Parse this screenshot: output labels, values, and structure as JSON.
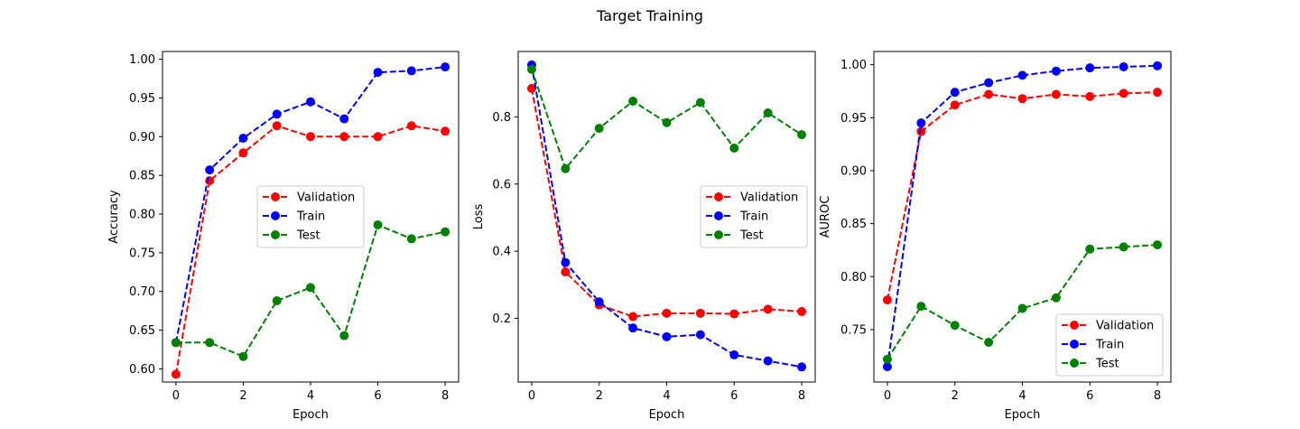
{
  "figure": {
    "title": "Target Training"
  },
  "chart_data": [
    {
      "type": "line",
      "xlabel": "Epoch",
      "ylabel": "Accuracy",
      "x": [
        0,
        1,
        2,
        3,
        4,
        5,
        6,
        7,
        8
      ],
      "xlim": [
        -0.4,
        8.4
      ],
      "ylim": [
        0.583,
        1.01
      ],
      "xticks": [
        0,
        2,
        4,
        6,
        8
      ],
      "yticks": [
        0.6,
        0.65,
        0.7,
        0.75,
        0.8,
        0.85,
        0.9,
        0.95,
        1.0
      ],
      "ytick_decimals": 2,
      "legend_position": "center-right",
      "series": [
        {
          "name": "Validation",
          "color": "#ff0000",
          "values": [
            0.593,
            0.843,
            0.879,
            0.914,
            0.9,
            0.9,
            0.9,
            0.914,
            0.907
          ]
        },
        {
          "name": "Train",
          "color": "#0000ff",
          "values": [
            0.634,
            0.857,
            0.898,
            0.929,
            0.945,
            0.923,
            0.983,
            0.985,
            0.99
          ]
        },
        {
          "name": "Test",
          "color": "#008000",
          "values": [
            0.634,
            0.634,
            0.616,
            0.688,
            0.705,
            0.643,
            0.786,
            0.768,
            0.777
          ]
        }
      ]
    },
    {
      "type": "line",
      "xlabel": "Epoch",
      "ylabel": "Loss",
      "x": [
        0,
        1,
        2,
        3,
        4,
        5,
        6,
        7,
        8
      ],
      "xlim": [
        -0.4,
        8.4
      ],
      "ylim": [
        0.01,
        0.995
      ],
      "xticks": [
        0,
        2,
        4,
        6,
        8
      ],
      "yticks": [
        0.2,
        0.4,
        0.6,
        0.8
      ],
      "ytick_decimals": 1,
      "legend_position": "center-right",
      "series": [
        {
          "name": "Validation",
          "color": "#ff0000",
          "values": [
            0.885,
            0.338,
            0.24,
            0.205,
            0.215,
            0.215,
            0.213,
            0.227,
            0.22
          ]
        },
        {
          "name": "Train",
          "color": "#0000ff",
          "values": [
            0.955,
            0.366,
            0.249,
            0.171,
            0.145,
            0.151,
            0.091,
            0.073,
            0.055
          ]
        },
        {
          "name": "Test",
          "color": "#008000",
          "values": [
            0.942,
            0.646,
            0.766,
            0.847,
            0.783,
            0.843,
            0.707,
            0.812,
            0.747
          ]
        }
      ]
    },
    {
      "type": "line",
      "xlabel": "Epoch",
      "ylabel": "AUROC",
      "x": [
        0,
        1,
        2,
        3,
        4,
        5,
        6,
        7,
        8
      ],
      "xlim": [
        -0.4,
        8.4
      ],
      "ylim": [
        0.7005,
        1.0125
      ],
      "xticks": [
        0,
        2,
        4,
        6,
        8
      ],
      "yticks": [
        0.75,
        0.8,
        0.85,
        0.9,
        0.95,
        1.0
      ],
      "ytick_decimals": 2,
      "legend_position": "lower-right",
      "series": [
        {
          "name": "Validation",
          "color": "#ff0000",
          "values": [
            0.778,
            0.937,
            0.962,
            0.972,
            0.968,
            0.972,
            0.97,
            0.973,
            0.974
          ]
        },
        {
          "name": "Train",
          "color": "#0000ff",
          "values": [
            0.715,
            0.945,
            0.974,
            0.983,
            0.99,
            0.994,
            0.997,
            0.998,
            0.999
          ]
        },
        {
          "name": "Test",
          "color": "#008000",
          "values": [
            0.722,
            0.772,
            0.754,
            0.738,
            0.77,
            0.78,
            0.826,
            0.828,
            0.83
          ]
        }
      ]
    }
  ]
}
